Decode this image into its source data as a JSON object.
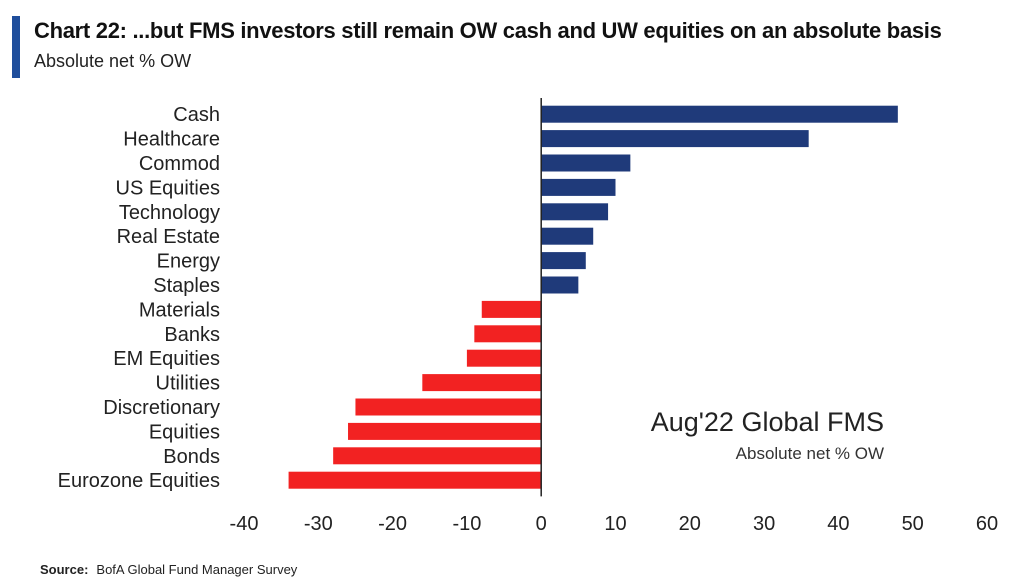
{
  "header": {
    "title": "Chart 22: ...but FMS investors still remain OW cash and UW equities on an absolute basis",
    "subtitle": "Absolute net % OW"
  },
  "colors": {
    "accent": "#1f4e9c",
    "positive": "#1f3a7a",
    "negative": "#f22222"
  },
  "chart_data": {
    "type": "bar",
    "orientation": "horizontal",
    "categories": [
      "Cash",
      "Healthcare",
      "Commod",
      "US Equities",
      "Technology",
      "Real Estate",
      "Energy",
      "Staples",
      "Materials",
      "Banks",
      "EM Equities",
      "Utilities",
      "Discretionary",
      "Equities",
      "Bonds",
      "Eurozone Equities"
    ],
    "values": [
      48,
      36,
      12,
      10,
      9,
      7,
      6,
      5,
      -8,
      -9,
      -10,
      -16,
      -25,
      -26,
      -28,
      -34
    ],
    "xlim": [
      -40,
      60
    ],
    "xticks": [
      "-40",
      "-30",
      "-20",
      "-10",
      "0",
      "10",
      "20",
      "30",
      "40",
      "50",
      "60"
    ],
    "grid": false,
    "annotation": {
      "title": "Aug'22 Global FMS",
      "subtitle": "Absolute net % OW"
    }
  },
  "footer": {
    "source_label": "Source:",
    "source_text": "BofA Global Fund Manager Survey"
  }
}
